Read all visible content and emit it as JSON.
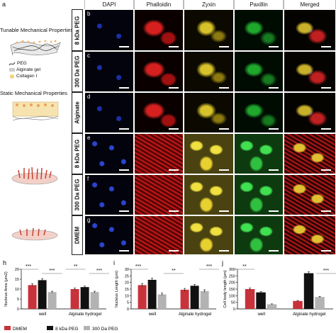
{
  "panel_a": {
    "letter": "a",
    "tunable_title": "Tunable Mechanical Properties",
    "static_title": "Static Mechanical Properties",
    "legend": [
      {
        "label": "PEG",
        "color": "#333333"
      },
      {
        "label": "Alginate gel",
        "color": "#bbbbbb"
      },
      {
        "label": "Collagen I",
        "color": "#f2d27a"
      }
    ]
  },
  "grid": {
    "columns": [
      "DAPI",
      "Phalloidin",
      "Zyxin",
      "Paxillin",
      "Merged"
    ],
    "rows": [
      {
        "letter": "b",
        "label": "8 kDa PEG"
      },
      {
        "letter": "c",
        "label": "300 Da PEG"
      },
      {
        "letter": "d",
        "label": "Alginate"
      },
      {
        "letter": "e",
        "label": "8 kDa PEG"
      },
      {
        "letter": "f",
        "label": "300 Da PEG"
      },
      {
        "letter": "g",
        "label": "DMEM"
      }
    ]
  },
  "legend": [
    {
      "label": "DMEM",
      "color": "#c8323a"
    },
    {
      "label": "8 kDa PEG",
      "color": "#111111"
    },
    {
      "label": "300 Da PEG",
      "color": "#b3b3b3"
    }
  ],
  "chart_data": [
    {
      "panel": "h",
      "type": "bar",
      "ylabel": "Nucleus Area (μm2)",
      "ylim": [
        0,
        20
      ],
      "yticks": [
        0,
        5,
        10,
        15,
        20
      ],
      "groups": [
        "well",
        "Alginate hydrogel"
      ],
      "series": [
        {
          "name": "DMEM",
          "values": [
            12,
            10
          ]
        },
        {
          "name": "8 kDa PEG",
          "values": [
            14.5,
            11
          ]
        },
        {
          "name": "300 Da PEG",
          "values": [
            8.5,
            8.5
          ]
        }
      ],
      "errors": [
        [
          0.6,
          0.5
        ],
        [
          0.7,
          0.5
        ],
        [
          0.4,
          0.4
        ]
      ],
      "annotations": [
        "***",
        "***",
        "**",
        "***"
      ]
    },
    {
      "panel": "i",
      "type": "bar",
      "ylabel": "Nucleus Length (μm)",
      "ylim": [
        0,
        30
      ],
      "yticks": [
        0,
        5,
        10,
        15,
        20,
        25,
        30
      ],
      "groups": [
        "well",
        "Alginate hydrogel"
      ],
      "series": [
        {
          "name": "DMEM",
          "values": [
            18,
            14.5
          ]
        },
        {
          "name": "8 kDa PEG",
          "values": [
            22,
            17.5
          ]
        },
        {
          "name": "300 Da PEG",
          "values": [
            11,
            13.5
          ]
        }
      ],
      "errors": [
        [
          1.2,
          1
        ],
        [
          1.2,
          1
        ],
        [
          1,
          1
        ]
      ],
      "annotations": [
        "***",
        "**",
        "***"
      ]
    },
    {
      "panel": "j",
      "type": "bar",
      "ylabel": "Cell body length (μm)",
      "ylim": [
        0,
        300
      ],
      "yticks": [
        0,
        50,
        100,
        150,
        200,
        250,
        300
      ],
      "groups": [
        "well",
        "Alginate hydrogel"
      ],
      "series": [
        {
          "name": "DMEM",
          "values": [
            150,
            60
          ]
        },
        {
          "name": "8 kDa PEG",
          "values": [
            125,
            270
          ]
        },
        {
          "name": "300 Da PEG",
          "values": [
            35,
            90
          ]
        }
      ],
      "errors": [
        [
          8,
          4
        ],
        [
          6,
          10
        ],
        [
          3,
          5
        ]
      ],
      "annotations": [
        "**",
        "***"
      ]
    }
  ]
}
